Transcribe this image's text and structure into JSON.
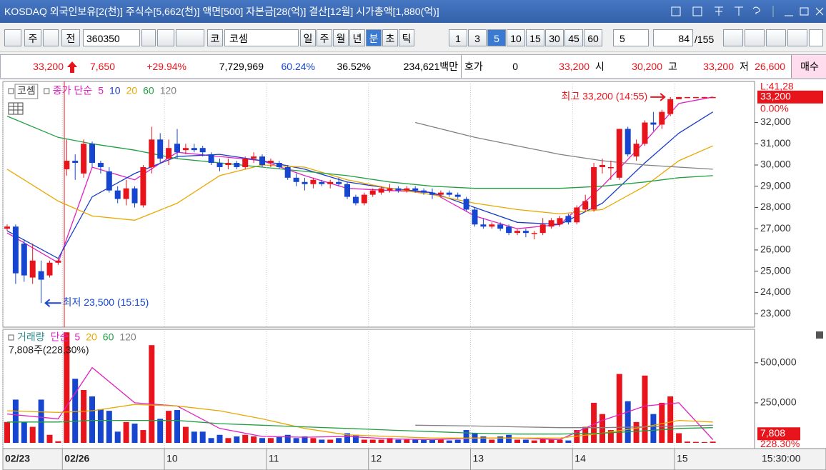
{
  "window": {
    "title": "KOSDAQ 외국인보유[2(천)] 주식수[5,662(천)] 액면[500] 자본금[28(억)] 결산[12월] 시가총액[1,880(억)]"
  },
  "toolbar": {
    "market": "주",
    "prev": "전",
    "code": "360350",
    "market_short": "코",
    "name": "코셈",
    "periods": [
      "일",
      "주",
      "월",
      "년",
      "분",
      "초",
      "틱"
    ],
    "active_period": 4,
    "intervals": [
      "1",
      "3",
      "5",
      "10",
      "15",
      "30",
      "45",
      "60"
    ],
    "active_interval": 2,
    "count_select": "5",
    "count": "84",
    "total": "/155"
  },
  "quote": {
    "price": "33,200",
    "change": "7,650",
    "change_pct": "+29.94%",
    "volume": "7,729,969",
    "ratio1": "60.24%",
    "ratio2": "36.52%",
    "amount": "234,621백만",
    "hoga_label": "호가",
    "hoga": "0",
    "ask": "33,200",
    "open_label": "시",
    "open": "30,200",
    "high_label": "고",
    "high": "33,200",
    "low_label": "저",
    "low": "26,600",
    "buy": "매수"
  },
  "cursor_time": "15:30:00",
  "chart_data": [
    {
      "type": "candlestick",
      "name": "코셈",
      "ma_label": "종가 단순",
      "up_color": "#e8141c",
      "down_color": "#1646d0",
      "open": [
        27000,
        27100,
        26300,
        24700,
        25000,
        24800,
        25400,
        29800,
        30200,
        29600,
        31000,
        30100,
        29700,
        28800,
        28400,
        28900,
        28100,
        29900,
        31200,
        30300,
        31000,
        30700,
        30800,
        30800,
        30500,
        30100,
        30000,
        30100,
        29900,
        30300,
        30400,
        30100,
        30100,
        29900,
        29400,
        29200,
        29100,
        29200,
        29100,
        29200,
        29100,
        28500,
        28200,
        28600,
        28700,
        28800,
        28900,
        28800,
        28900,
        28800,
        28700,
        28600,
        28700,
        28600,
        28400,
        27900,
        27200,
        27100,
        27200,
        27100,
        26800,
        26900,
        26800,
        26800,
        27100,
        27200,
        27600,
        27300,
        27900,
        27900,
        29900,
        29900,
        29400,
        31700,
        30400,
        31000,
        32000,
        31900,
        32400,
        33100,
        33200,
        33200,
        33200,
        33200
      ],
      "high": [
        27200,
        27200,
        26500,
        26300,
        25500,
        25500,
        25600,
        31200,
        30500,
        31200,
        31100,
        30200,
        29900,
        29000,
        29300,
        29000,
        30000,
        31800,
        31500,
        31200,
        31700,
        31000,
        31000,
        30900,
        30600,
        30300,
        30300,
        30200,
        30400,
        30600,
        30500,
        30300,
        30200,
        30000,
        29600,
        29400,
        29400,
        29300,
        29300,
        29400,
        29200,
        28600,
        28700,
        28900,
        29000,
        29100,
        29000,
        29000,
        29000,
        28900,
        28900,
        28800,
        28800,
        28700,
        28500,
        28000,
        27500,
        27300,
        27300,
        27200,
        27000,
        27000,
        26900,
        27500,
        27500,
        27600,
        27700,
        28100,
        28600,
        30100,
        30300,
        30200,
        31700,
        31800,
        31200,
        32100,
        32500,
        32600,
        33200,
        33200,
        33200,
        33200,
        33200,
        33200
      ],
      "low": [
        26900,
        24400,
        24500,
        24400,
        23500,
        24700,
        25300,
        29500,
        29300,
        29400,
        29900,
        29600,
        28700,
        28200,
        28100,
        28000,
        28000,
        29600,
        30100,
        30000,
        30300,
        30500,
        30600,
        30400,
        30000,
        29700,
        29800,
        29800,
        29800,
        30100,
        29900,
        29900,
        29800,
        29300,
        29000,
        28800,
        28900,
        29000,
        28900,
        29000,
        28400,
        28100,
        28100,
        28500,
        28600,
        28700,
        28700,
        28700,
        28700,
        28600,
        28400,
        28500,
        28500,
        28400,
        27800,
        27100,
        27000,
        27000,
        26900,
        26700,
        26700,
        26600,
        26500,
        26700,
        27000,
        27100,
        27200,
        27200,
        27800,
        27800,
        29600,
        29300,
        29300,
        30400,
        30200,
        30900,
        31600,
        31700,
        32300,
        33100,
        33200,
        33200,
        33200,
        33200
      ],
      "close": [
        27100,
        24900,
        24800,
        25500,
        24600,
        25400,
        25500,
        30200,
        30100,
        31000,
        30100,
        29900,
        28800,
        28400,
        28900,
        28200,
        29900,
        31200,
        30300,
        30800,
        30600,
        30800,
        30700,
        30600,
        30100,
        29900,
        30100,
        29900,
        30300,
        30400,
        30000,
        30200,
        29900,
        29400,
        29200,
        29100,
        29300,
        29100,
        29200,
        29100,
        28500,
        28200,
        28600,
        28800,
        28900,
        28900,
        28800,
        28900,
        28800,
        28700,
        28600,
        28700,
        28600,
        28500,
        27900,
        27200,
        27100,
        27200,
        27000,
        26800,
        26900,
        26800,
        26800,
        27200,
        27400,
        27500,
        27300,
        28000,
        28300,
        29900,
        30000,
        29900,
        31700,
        30500,
        31000,
        32000,
        31900,
        32500,
        33100,
        33200,
        33200,
        33200,
        33200,
        33200
      ],
      "series": [
        {
          "name": "5",
          "color": "#e020c0",
          "x": [
            0,
            6,
            10,
            15,
            20,
            25,
            30,
            35,
            40,
            45,
            50,
            55,
            60,
            65,
            70,
            75,
            79,
            83
          ],
          "values": [
            26800,
            25400,
            29900,
            29300,
            30600,
            30400,
            30200,
            29500,
            28900,
            28800,
            28700,
            27600,
            27000,
            27200,
            29000,
            31100,
            32900,
            33200
          ]
        },
        {
          "name": "10",
          "color": "#1a3cc8",
          "x": [
            0,
            6,
            10,
            15,
            20,
            25,
            30,
            35,
            40,
            45,
            50,
            55,
            60,
            65,
            70,
            75,
            79,
            83
          ],
          "values": [
            26900,
            25600,
            28500,
            29600,
            30400,
            30500,
            30200,
            29800,
            29200,
            28900,
            28700,
            28000,
            27300,
            27200,
            28200,
            30100,
            31500,
            32500
          ]
        },
        {
          "name": "20",
          "color": "#e8a800",
          "x": [
            0,
            6,
            10,
            15,
            20,
            25,
            30,
            35,
            40,
            45,
            50,
            55,
            60,
            65,
            70,
            75,
            79,
            83
          ],
          "values": [
            29800,
            28300,
            27600,
            27400,
            28200,
            29500,
            30000,
            29900,
            29300,
            28900,
            28600,
            28200,
            27900,
            27700,
            27900,
            29000,
            30200,
            30900
          ]
        },
        {
          "name": "60",
          "color": "#20a040",
          "x": [
            0,
            6,
            10,
            15,
            20,
            25,
            30,
            35,
            40,
            45,
            50,
            55,
            60,
            65,
            70,
            75,
            79,
            83
          ],
          "values": [
            32300,
            31300,
            31000,
            30700,
            30300,
            30100,
            29900,
            29700,
            29500,
            29200,
            29000,
            28900,
            28900,
            28900,
            29000,
            29200,
            29400,
            29500
          ]
        },
        {
          "name": "120",
          "color": "#808080",
          "x": [
            48,
            55,
            60,
            65,
            70,
            75,
            79,
            83
          ],
          "values": [
            32000,
            31300,
            30900,
            30500,
            30200,
            30000,
            29900,
            29800
          ]
        }
      ],
      "ylim": [
        22500,
        33800
      ],
      "yticks": [
        {
          "value": 23000,
          "label": "23,000"
        },
        {
          "value": 24000,
          "label": "24,000"
        },
        {
          "value": 25000,
          "label": "25,000"
        },
        {
          "value": 26000,
          "label": "26,000"
        },
        {
          "value": 27000,
          "label": "27,000"
        },
        {
          "value": 28000,
          "label": "28,000"
        },
        {
          "value": 29000,
          "label": "29,000"
        },
        {
          "value": 30000,
          "label": "30,000"
        },
        {
          "value": 31000,
          "label": "31,000"
        },
        {
          "value": 32000,
          "label": "32,000"
        }
      ],
      "annotations": [
        {
          "text": "최고 33,200 (14:55)",
          "x": 78,
          "y": 33200,
          "side": "left",
          "color": "#e8141c"
        },
        {
          "text": "최저 23,500 (15:15)",
          "x": 4,
          "y": 23500,
          "side": "right",
          "color": "#1646d0"
        }
      ],
      "last_label": "33,200",
      "last_change": "0.00%",
      "top_label": "L:41,28"
    },
    {
      "type": "bar",
      "name": "거래량",
      "legend_color": "#2e8b8b",
      "ma_label": "단순",
      "info": "7,808주(228,30%)",
      "categories": [
        "02/23",
        null,
        null,
        null,
        null,
        null,
        null,
        "02/26",
        null,
        null,
        null,
        null,
        null,
        null,
        null,
        null,
        null,
        null,
        null,
        "10",
        null,
        null,
        null,
        null,
        null,
        null,
        null,
        null,
        null,
        null,
        null,
        "11",
        null,
        null,
        null,
        null,
        null,
        null,
        null,
        null,
        null,
        null,
        null,
        "12",
        null,
        null,
        null,
        null,
        null,
        null,
        null,
        null,
        null,
        null,
        null,
        "13",
        null,
        null,
        null,
        null,
        null,
        null,
        null,
        null,
        null,
        null,
        null,
        "14",
        null,
        null,
        null,
        null,
        null,
        null,
        null,
        null,
        null,
        null,
        null,
        "15",
        null,
        null,
        null,
        null
      ],
      "values": [
        130000,
        270000,
        130000,
        100000,
        270000,
        50000,
        10000,
        690000,
        400000,
        330000,
        290000,
        210000,
        200000,
        70000,
        130000,
        120000,
        80000,
        610000,
        150000,
        200000,
        205000,
        100000,
        70000,
        70000,
        30000,
        50000,
        30000,
        40000,
        50000,
        40000,
        30000,
        30000,
        40000,
        50000,
        30000,
        40000,
        30000,
        20000,
        20000,
        30000,
        60000,
        50000,
        20000,
        20000,
        20000,
        30000,
        20000,
        20000,
        20000,
        20000,
        20000,
        20000,
        15000,
        20000,
        80000,
        60000,
        40000,
        20000,
        40000,
        50000,
        20000,
        20000,
        15000,
        25000,
        20000,
        20000,
        15000,
        80000,
        100000,
        250000,
        180000,
        80000,
        430000,
        260000,
        130000,
        420000,
        180000,
        250000,
        290000,
        60000,
        8000,
        6000,
        5000,
        7808
      ],
      "series": [
        {
          "name": "5",
          "color": "#e020c0",
          "x": [
            0,
            6,
            10,
            15,
            20,
            25,
            30,
            35,
            40,
            45,
            50,
            55,
            60,
            65,
            70,
            75,
            79,
            83
          ],
          "values": [
            180000,
            150000,
            470000,
            250000,
            230000,
            90000,
            40000,
            35000,
            40000,
            25000,
            20000,
            30000,
            30000,
            20000,
            140000,
            230000,
            250000,
            20000
          ]
        },
        {
          "name": "20",
          "color": "#e8a800",
          "x": [
            0,
            6,
            10,
            15,
            20,
            25,
            30,
            35,
            40,
            45,
            50,
            55,
            60,
            65,
            70,
            75,
            79,
            83
          ],
          "values": [
            200000,
            190000,
            200000,
            240000,
            230000,
            200000,
            150000,
            90000,
            50000,
            40000,
            30000,
            30000,
            30000,
            30000,
            60000,
            100000,
            140000,
            130000
          ]
        },
        {
          "name": "60",
          "color": "#20a040",
          "x": [
            0,
            6,
            10,
            15,
            20,
            25,
            30,
            35,
            40,
            45,
            50,
            55,
            60,
            65,
            70,
            75,
            79,
            83
          ],
          "values": [
            130000,
            130000,
            140000,
            140000,
            140000,
            120000,
            110000,
            100000,
            90000,
            80000,
            70000,
            60000,
            55000,
            55000,
            60000,
            75000,
            90000,
            95000
          ]
        },
        {
          "name": "120",
          "color": "#808080",
          "x": [
            48,
            55,
            60,
            65,
            70,
            75,
            79,
            83
          ],
          "values": [
            110000,
            105000,
            100000,
            95000,
            95000,
            100000,
            105000,
            110000
          ]
        }
      ],
      "ylim": [
        0,
        700000
      ],
      "yticks": [
        {
          "value": 250000,
          "label": "250,000"
        },
        {
          "value": 500000,
          "label": "500,000"
        }
      ],
      "current_label": "7,808",
      "current_pct": "228.30%"
    }
  ]
}
